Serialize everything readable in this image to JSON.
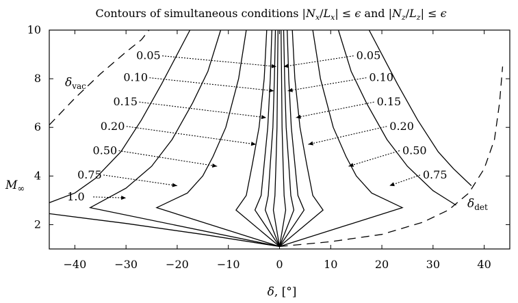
{
  "chart_data": {
    "type": "line",
    "title": "Contours of simultaneous conditions |N_x/L_x| ≤ ε and |N_z/L_z| ≤ ε",
    "xlabel": "δ, [°]",
    "ylabel": "M∞",
    "xlim": [
      -45,
      45
    ],
    "ylim": [
      1,
      10
    ],
    "xticks": [
      "−40",
      "−30",
      "−20",
      "−10",
      "0",
      "10",
      "20",
      "30",
      "40"
    ],
    "yticks": [
      "2",
      "4",
      "6",
      "8",
      "10"
    ],
    "grid": false,
    "contour_labels_left": [
      "0.05",
      "0.10",
      "0.15",
      "0.20",
      "0.50",
      "0.75",
      "1.0"
    ],
    "contour_labels_right": [
      "0.05",
      "0.10",
      "0.15",
      "0.20",
      "0.50",
      "0.75"
    ],
    "boundary_labels": {
      "vacuum": "δ_vac",
      "detachment": "δ_det"
    },
    "series": [
      {
        "name": "0.05",
        "left": [
          [
            -0.3,
            10
          ],
          [
            -0.4,
            8
          ],
          [
            -0.5,
            6
          ],
          [
            -0.7,
            4.5
          ],
          [
            -0.9,
            3.2
          ],
          [
            -1.2,
            2.6
          ],
          [
            0,
            1.1
          ]
        ],
        "right": [
          [
            0.3,
            10
          ],
          [
            0.4,
            8
          ],
          [
            0.5,
            6
          ],
          [
            0.7,
            4.5
          ],
          [
            0.9,
            3.2
          ],
          [
            1.2,
            2.6
          ],
          [
            0,
            1.1
          ]
        ]
      },
      {
        "name": "0.10",
        "left": [
          [
            -0.8,
            10
          ],
          [
            -1.0,
            8
          ],
          [
            -1.3,
            6
          ],
          [
            -1.8,
            4.5
          ],
          [
            -2.2,
            3.2
          ],
          [
            -2.8,
            2.6
          ],
          [
            0,
            1.1
          ]
        ],
        "right": [
          [
            0.8,
            10
          ],
          [
            1.0,
            8
          ],
          [
            1.3,
            6
          ],
          [
            1.8,
            4.5
          ],
          [
            2.2,
            3.2
          ],
          [
            2.8,
            2.6
          ],
          [
            0,
            1.1
          ]
        ]
      },
      {
        "name": "0.15",
        "left": [
          [
            -1.5,
            10
          ],
          [
            -1.8,
            8
          ],
          [
            -2.3,
            6
          ],
          [
            -3.0,
            4.5
          ],
          [
            -3.6,
            3.2
          ],
          [
            -4.8,
            2.6
          ],
          [
            0,
            1.1
          ]
        ],
        "right": [
          [
            1.5,
            10
          ],
          [
            1.8,
            8
          ],
          [
            2.3,
            6
          ],
          [
            3.0,
            4.5
          ],
          [
            3.6,
            3.2
          ],
          [
            4.8,
            2.6
          ],
          [
            0,
            1.1
          ]
        ]
      },
      {
        "name": "0.20",
        "left": [
          [
            -2.5,
            10
          ],
          [
            -3.0,
            8
          ],
          [
            -4.0,
            6
          ],
          [
            -5.3,
            4.5
          ],
          [
            -6.5,
            3.2
          ],
          [
            -8.5,
            2.6
          ],
          [
            0,
            1.1
          ]
        ],
        "right": [
          [
            2.5,
            10
          ],
          [
            3.0,
            8
          ],
          [
            4.0,
            6
          ],
          [
            5.3,
            4.5
          ],
          [
            6.5,
            3.2
          ],
          [
            8.5,
            2.6
          ],
          [
            0,
            1.1
          ]
        ]
      },
      {
        "name": "0.50",
        "left": [
          [
            -6.5,
            10
          ],
          [
            -8,
            8
          ],
          [
            -10.5,
            6
          ],
          [
            -13,
            4.8
          ],
          [
            -15,
            4.0
          ],
          [
            -18,
            3.3
          ],
          [
            -24,
            2.7
          ],
          [
            0,
            1.1
          ]
        ],
        "right": [
          [
            6.5,
            10
          ],
          [
            8,
            8
          ],
          [
            10.5,
            6
          ],
          [
            13,
            4.8
          ],
          [
            15,
            4.0
          ],
          [
            18,
            3.3
          ],
          [
            24,
            2.7
          ],
          [
            0,
            1.1
          ]
        ]
      },
      {
        "name": "0.75",
        "left": [
          [
            -11.5,
            10
          ],
          [
            -14,
            8.3
          ],
          [
            -17,
            7
          ],
          [
            -21,
            5.5
          ],
          [
            -25,
            4.4
          ],
          [
            -30,
            3.5
          ],
          [
            -37,
            2.7
          ],
          [
            0,
            1.1
          ]
        ],
        "right": [
          [
            11.5,
            10
          ],
          [
            14,
            8.3
          ],
          [
            17,
            7
          ],
          [
            21,
            5.5
          ],
          [
            25,
            4.4
          ],
          [
            30,
            3.4
          ],
          [
            34.5,
            2.8
          ]
        ]
      },
      {
        "name": "1.0",
        "left": [
          [
            -17.5,
            10
          ],
          [
            -20,
            9
          ],
          [
            -23,
            7.8
          ],
          [
            -27,
            6.3
          ],
          [
            -31,
            5.0
          ],
          [
            -36,
            3.9
          ],
          [
            -40,
            3.3
          ],
          [
            -45,
            2.9
          ]
        ],
        "right": [
          [
            17.5,
            10
          ],
          [
            20,
            9
          ],
          [
            23,
            7.8
          ],
          [
            27,
            6.3
          ],
          [
            31,
            5.0
          ],
          [
            34,
            4.3
          ],
          [
            37.5,
            3.6
          ]
        ]
      },
      {
        "name": "lower boundary",
        "left": [
          [
            -45,
            2.45
          ],
          [
            -30,
            2.05
          ],
          [
            -15,
            1.6
          ],
          [
            0,
            1.1
          ]
        ],
        "right": []
      }
    ],
    "boundaries": {
      "vacuum": [
        [
          -45,
          6.1
        ],
        [
          -40,
          7.2
        ],
        [
          -35,
          8.2
        ],
        [
          -30,
          9.1
        ],
        [
          -27,
          9.6
        ],
        [
          -25.5,
          10
        ]
      ],
      "detachment": [
        [
          0,
          1.1
        ],
        [
          10,
          1.3
        ],
        [
          20,
          1.6
        ],
        [
          28,
          2.1
        ],
        [
          33,
          2.6
        ],
        [
          37,
          3.3
        ],
        [
          40,
          4.3
        ],
        [
          42,
          5.5
        ],
        [
          43,
          7
        ],
        [
          43.6,
          8.5
        ]
      ]
    }
  }
}
